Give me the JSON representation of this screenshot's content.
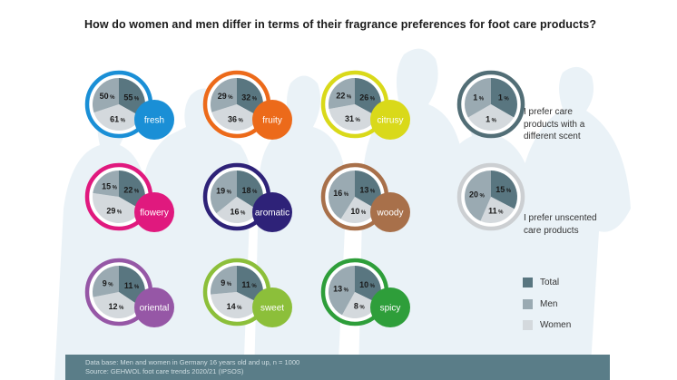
{
  "title": "How do women and men differ in terms of their fragrance preferences for foot care products?",
  "colors": {
    "total": "#597680",
    "men": "#9aaab2",
    "women": "#d4d9dd",
    "silhouette": "#e8f1f6",
    "footer": "#5a7d88"
  },
  "chart_data": {
    "type": "pie",
    "title": "How do women and men differ in terms of their fragrance preferences for foot care products?",
    "segments_order": [
      "Total",
      "Men",
      "Women"
    ],
    "legend": [
      "Total",
      "Men",
      "Women"
    ],
    "legend_placement": "bottom-right",
    "unit": "%",
    "pies": [
      {
        "label": "fresh",
        "color": "#1a8fd6",
        "total": 55,
        "men": 50,
        "women": 61
      },
      {
        "label": "fruity",
        "color": "#ec6a1a",
        "total": 32,
        "men": 29,
        "women": 36
      },
      {
        "label": "citrusy",
        "color": "#d9d91a",
        "total": 26,
        "men": 22,
        "women": 31
      },
      {
        "label": "I prefer care products with a different scent",
        "color": "#526e76",
        "total": 1,
        "men": 1,
        "women": 1,
        "note": true
      },
      {
        "label": "flowery",
        "color": "#e0197e",
        "total": 22,
        "men": 15,
        "women": 29
      },
      {
        "label": "aromatic",
        "color": "#2e2278",
        "total": 18,
        "men": 19,
        "women": 16
      },
      {
        "label": "woody",
        "color": "#a8704a",
        "total": 13,
        "men": 16,
        "women": 10
      },
      {
        "label": "I prefer unscented care products",
        "color": "#cccfd2",
        "total": 15,
        "men": 20,
        "women": 11,
        "note": true
      },
      {
        "label": "oriental",
        "color": "#9657a6",
        "total": 11,
        "men": 9,
        "women": 12
      },
      {
        "label": "sweet",
        "color": "#8cbf3a",
        "total": 11,
        "men": 9,
        "women": 14
      },
      {
        "label": "spicy",
        "color": "#2e9e3a",
        "total": 10,
        "men": 13,
        "women": 8
      }
    ]
  },
  "notes": {
    "different_scent": [
      "I prefer care",
      "products with a",
      "different scent"
    ],
    "unscented": [
      "I prefer unscented",
      "care products"
    ]
  },
  "legend": [
    {
      "label": "Total",
      "color": "#597680"
    },
    {
      "label": "Men",
      "color": "#9aaab2"
    },
    {
      "label": "Women",
      "color": "#d4d9dd"
    }
  ],
  "footer": {
    "line1": "Data base: Men and women in Germany 16 years old and up, n = 1000",
    "line2": "Source: GEHWOL foot care trends 2020/21 (IPSOS)"
  }
}
